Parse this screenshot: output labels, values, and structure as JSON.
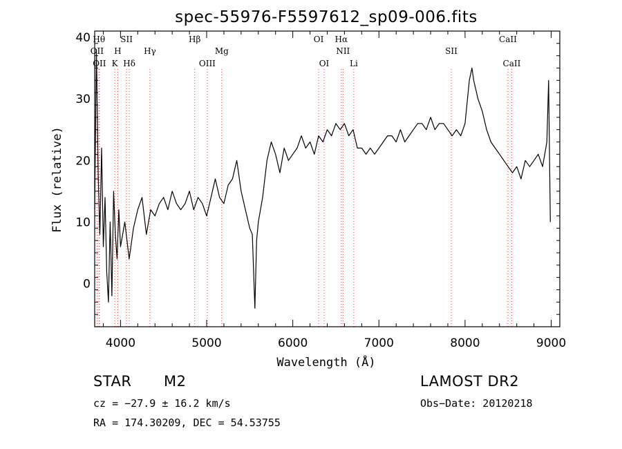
{
  "chart_data": {
    "type": "line",
    "title": "spec-55976-F5597612_sp09-006.fits",
    "xlabel": "Wavelength (Å)",
    "ylabel": "Flux (relative)",
    "xlim": [
      3700,
      9100
    ],
    "ylim": [
      -7,
      41
    ],
    "xticks": [
      4000,
      5000,
      6000,
      7000,
      8000,
      9000
    ],
    "yticks": [
      0,
      10,
      20,
      30,
      40
    ],
    "grid": false,
    "line_color": "#000000",
    "marker_color": "#d84040",
    "series": [
      {
        "x": [
          3700,
          3720,
          3740,
          3760,
          3780,
          3800,
          3820,
          3840,
          3860,
          3880,
          3900,
          3920,
          3940,
          3960,
          3980,
          4000,
          4050,
          4100,
          4150,
          4200,
          4250,
          4300,
          4350,
          4400,
          4450,
          4500,
          4550,
          4600,
          4650,
          4700,
          4750,
          4800,
          4850,
          4900,
          4950,
          5000,
          5050,
          5100,
          5150,
          5200,
          5250,
          5300,
          5350,
          5400,
          5450,
          5500,
          5530,
          5560,
          5580,
          5600,
          5650,
          5700,
          5750,
          5800,
          5850,
          5900,
          5950,
          6000,
          6050,
          6100,
          6150,
          6200,
          6250,
          6300,
          6350,
          6400,
          6450,
          6500,
          6550,
          6600,
          6650,
          6700,
          6750,
          6800,
          6850,
          6900,
          6950,
          7000,
          7050,
          7100,
          7150,
          7200,
          7250,
          7300,
          7350,
          7400,
          7450,
          7500,
          7550,
          7600,
          7650,
          7700,
          7750,
          7800,
          7850,
          7900,
          7950,
          8000,
          8050,
          8080,
          8100,
          8150,
          8200,
          8250,
          8300,
          8350,
          8400,
          8450,
          8500,
          8550,
          8600,
          8650,
          8700,
          8750,
          8800,
          8850,
          8900,
          8950,
          8970,
          8990
        ],
        "y": [
          12,
          38,
          18,
          8,
          22,
          6,
          14,
          2,
          -3,
          10,
          -2,
          15,
          8,
          4,
          12,
          6,
          10,
          4,
          9,
          12,
          14,
          8,
          12,
          11,
          13,
          14,
          12,
          15,
          13,
          12,
          13,
          15,
          12,
          14,
          13,
          11,
          14,
          17,
          14,
          13,
          16,
          17,
          20,
          15,
          12,
          9,
          8,
          -4,
          7,
          10,
          14,
          20,
          23,
          21,
          18,
          22,
          20,
          21,
          22,
          24,
          22,
          23,
          21,
          24,
          23,
          25,
          24,
          26,
          25,
          26,
          24,
          25,
          22,
          22,
          21,
          22,
          21,
          22,
          23,
          24,
          24,
          23,
          25,
          23,
          24,
          25,
          26,
          26,
          25,
          27,
          25,
          26,
          26,
          25,
          24,
          25,
          24,
          26,
          33,
          35,
          33,
          30,
          28,
          25,
          23,
          22,
          21,
          20,
          19,
          18,
          19,
          17,
          20,
          19,
          20,
          21,
          19,
          23,
          33,
          10
        ]
      }
    ],
    "line_markers": [
      {
        "x": 3727,
        "label": "OII",
        "row": 1
      },
      {
        "x": 3750,
        "label": "Hθ",
        "row": 0
      },
      {
        "x": 3755,
        "label": "OII",
        "row": 2
      },
      {
        "x": 3934,
        "label": "K",
        "row": 2
      },
      {
        "x": 3968,
        "label": "H",
        "row": 1
      },
      {
        "x": 4070,
        "label": "SII",
        "row": 0
      },
      {
        "x": 4102,
        "label": "Hδ",
        "row": 2
      },
      {
        "x": 4341,
        "label": "Hγ",
        "row": 1
      },
      {
        "x": 4861,
        "label": "Hβ",
        "row": 0
      },
      {
        "x": 5007,
        "label": "OIII",
        "row": 2
      },
      {
        "x": 5175,
        "label": "Mg",
        "row": 1
      },
      {
        "x": 6300,
        "label": "OI",
        "row": 0
      },
      {
        "x": 6364,
        "label": "OI",
        "row": 2
      },
      {
        "x": 6563,
        "label": "Hα",
        "row": 0
      },
      {
        "x": 6583,
        "label": "NII",
        "row": 1
      },
      {
        "x": 6708,
        "label": "Li",
        "row": 2
      },
      {
        "x": 7840,
        "label": "SII",
        "row": 1
      },
      {
        "x": 8498,
        "label": "CaII",
        "row": 0
      },
      {
        "x": 8542,
        "label": "CaII",
        "row": 2
      }
    ]
  },
  "info": {
    "class_label": "STAR",
    "subclass_label": "M2",
    "survey": "LAMOST DR2",
    "cz_text": "cz = −27.9 ± 16.2 km/s",
    "obs_date": "Obs−Date: 20120218",
    "radec_text": "RA = 174.30209, DEC =  54.53755"
  }
}
